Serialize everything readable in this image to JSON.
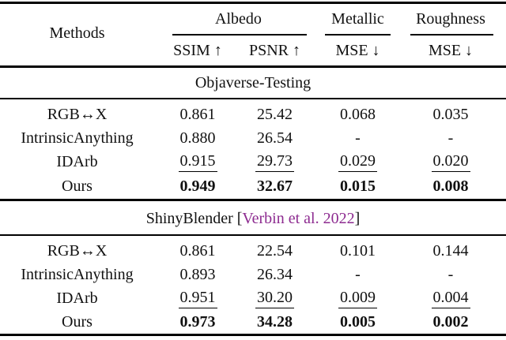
{
  "colors": {
    "background": "#ffffff",
    "text": "#111111",
    "rule": "#000000",
    "citation": "#8d2b90"
  },
  "header": {
    "methods_label": "Methods",
    "groups": [
      {
        "label": "Albedo"
      },
      {
        "label": "Metallic"
      },
      {
        "label": "Roughness"
      }
    ],
    "subheaders": [
      "SSIM ↑",
      "PSNR ↑",
      "MSE ↓",
      "MSE ↓"
    ]
  },
  "sections": [
    {
      "title_prefix": "Objaverse-Testing",
      "citation": "",
      "title_suffix": "",
      "rows": [
        {
          "method": "RGB↔X",
          "values": [
            "0.861",
            "25.42",
            "0.068",
            "0.035"
          ],
          "emphasis": "none"
        },
        {
          "method": "IntrinsicAnything",
          "values": [
            "0.880",
            "26.54",
            "-",
            "-"
          ],
          "emphasis": "none"
        },
        {
          "method": "IDArb",
          "values": [
            "0.915",
            "29.73",
            "0.029",
            "0.020"
          ],
          "emphasis": "underline"
        },
        {
          "method": "Ours",
          "values": [
            "0.949",
            "32.67",
            "0.015",
            "0.008"
          ],
          "emphasis": "bold"
        }
      ]
    },
    {
      "title_prefix": "ShinyBlender [",
      "citation": "Verbin et al. 2022",
      "title_suffix": "]",
      "rows": [
        {
          "method": "RGB↔X",
          "values": [
            "0.861",
            "22.54",
            "0.101",
            "0.144"
          ],
          "emphasis": "none"
        },
        {
          "method": "IntrinsicAnything",
          "values": [
            "0.893",
            "26.34",
            "-",
            "-"
          ],
          "emphasis": "none"
        },
        {
          "method": "IDArb",
          "values": [
            "0.951",
            "30.20",
            "0.009",
            "0.004"
          ],
          "emphasis": "underline"
        },
        {
          "method": "Ours",
          "values": [
            "0.973",
            "34.28",
            "0.005",
            "0.002"
          ],
          "emphasis": "bold"
        }
      ]
    }
  ],
  "chart_data": {
    "type": "table",
    "title": "",
    "column_groups": [
      "Albedo",
      "Albedo",
      "Metallic",
      "Roughness"
    ],
    "columns": [
      "Methods",
      "Albedo SSIM ↑",
      "Albedo PSNR ↑",
      "Metallic MSE ↓",
      "Roughness MSE ↓"
    ],
    "sections": [
      {
        "name": "Objaverse-Testing",
        "rows": [
          [
            "RGB↔X",
            0.861,
            25.42,
            0.068,
            0.035
          ],
          [
            "IntrinsicAnything",
            0.88,
            26.54,
            null,
            null
          ],
          [
            "IDArb",
            0.915,
            29.73,
            0.029,
            0.02
          ],
          [
            "Ours",
            0.949,
            32.67,
            0.015,
            0.008
          ]
        ],
        "best_row": "Ours",
        "second_best_row": "IDArb"
      },
      {
        "name": "ShinyBlender [Verbin et al. 2022]",
        "rows": [
          [
            "RGB↔X",
            0.861,
            22.54,
            0.101,
            0.144
          ],
          [
            "IntrinsicAnything",
            0.893,
            26.34,
            null,
            null
          ],
          [
            "IDArb",
            0.951,
            30.2,
            0.009,
            0.004
          ],
          [
            "Ours",
            0.973,
            34.28,
            0.005,
            0.002
          ]
        ],
        "best_row": "Ours",
        "second_best_row": "IDArb"
      }
    ]
  }
}
